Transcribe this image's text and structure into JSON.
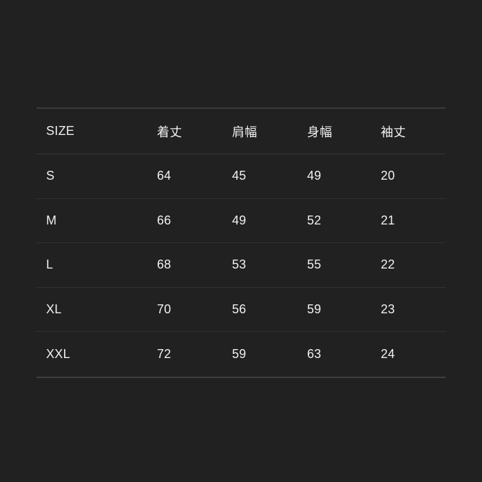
{
  "page": {
    "background_color": "#212121",
    "text_color": "#f1f1f1",
    "divider_color": "#343434"
  },
  "chart_data": {
    "type": "table",
    "title": "",
    "columns": [
      "SIZE",
      "着丈",
      "肩幅",
      "身幅",
      "袖丈"
    ],
    "rows": [
      [
        "S",
        64,
        45,
        49,
        20
      ],
      [
        "M",
        66,
        49,
        52,
        21
      ],
      [
        "L",
        68,
        53,
        55,
        22
      ],
      [
        "XL",
        70,
        56,
        59,
        23
      ],
      [
        "XXL",
        72,
        59,
        63,
        24
      ]
    ]
  },
  "table": {
    "header": {
      "size": "SIZE",
      "length": "着丈",
      "shoulder": "肩幅",
      "width": "身幅",
      "sleeve": "袖丈"
    },
    "rows": [
      {
        "size": "S",
        "length": "64",
        "shoulder": "45",
        "width": "49",
        "sleeve": "20"
      },
      {
        "size": "M",
        "length": "66",
        "shoulder": "49",
        "width": "52",
        "sleeve": "21"
      },
      {
        "size": "L",
        "length": "68",
        "shoulder": "53",
        "width": "55",
        "sleeve": "22"
      },
      {
        "size": "XL",
        "length": "70",
        "shoulder": "56",
        "width": "59",
        "sleeve": "23"
      },
      {
        "size": "XXL",
        "length": "72",
        "shoulder": "59",
        "width": "63",
        "sleeve": "24"
      }
    ]
  }
}
